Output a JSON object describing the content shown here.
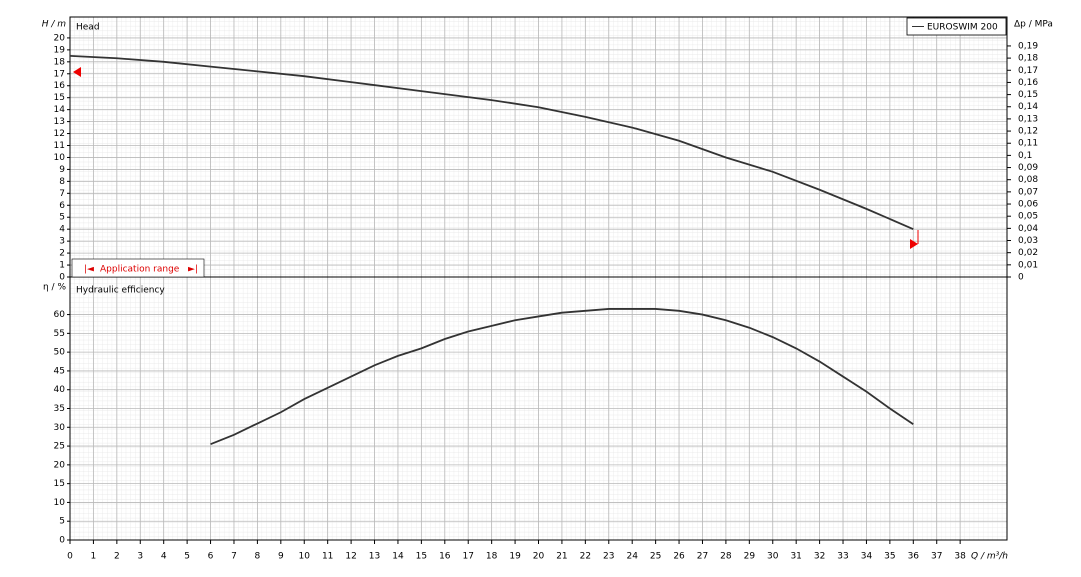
{
  "chart_data": [
    {
      "type": "line",
      "title": "Head",
      "ylabel": "H / m",
      "y2label": "Δp / MPa",
      "ylim": [
        0,
        21.75
      ],
      "yticks": [
        0,
        1,
        2,
        3,
        4,
        5,
        6,
        7,
        8,
        9,
        10,
        11,
        12,
        13,
        14,
        15,
        16,
        17,
        18,
        19,
        20
      ],
      "y2lim": [
        0,
        0.2138
      ],
      "y2ticks": [
        0,
        {
          "value": 0.01,
          "label": "0,01"
        },
        {
          "value": 0.02,
          "label": "0,02"
        },
        {
          "value": 0.03,
          "label": "0,03"
        },
        {
          "value": 0.04,
          "label": "0,04"
        },
        {
          "value": 0.05,
          "label": "0,05"
        },
        {
          "value": 0.06,
          "label": "0,06"
        },
        {
          "value": 0.07,
          "label": "0,07"
        },
        {
          "value": 0.08,
          "label": "0,08"
        },
        {
          "value": 0.09,
          "label": "0,09"
        },
        {
          "value": 0.1,
          "label": "0,1"
        },
        {
          "value": 0.11,
          "label": "0,11"
        },
        {
          "value": 0.12,
          "label": "0,12"
        },
        {
          "value": 0.13,
          "label": "0,13"
        },
        {
          "value": 0.14,
          "label": "0,14"
        },
        {
          "value": 0.15,
          "label": "0,15"
        },
        {
          "value": 0.16,
          "label": "0,16"
        },
        {
          "value": 0.17,
          "label": "0,17"
        },
        {
          "value": 0.18,
          "label": "0,18"
        },
        {
          "value": 0.19,
          "label": "0,19"
        }
      ],
      "annotation": "Application range",
      "legend": "upper right",
      "grid": true,
      "series": [
        {
          "name": "EUROSWIM 200",
          "color": "#333333",
          "x": [
            0,
            2,
            4,
            6,
            8,
            10,
            12,
            14,
            16,
            18,
            20,
            22,
            24,
            26,
            28,
            30,
            32,
            34,
            36
          ],
          "values": [
            18.5,
            18.3,
            18.0,
            17.6,
            17.2,
            16.8,
            16.3,
            15.8,
            15.3,
            14.8,
            14.2,
            13.4,
            12.5,
            11.4,
            10.0,
            8.8,
            7.3,
            5.7,
            4.0
          ]
        }
      ]
    },
    {
      "type": "line",
      "title": "Hydraulic efficiency",
      "ylabel": "η / %",
      "xlabel": "Q / m³/h",
      "xlim": [
        0,
        40
      ],
      "xticks": [
        0,
        1,
        2,
        3,
        4,
        5,
        6,
        7,
        8,
        9,
        10,
        11,
        12,
        13,
        14,
        15,
        16,
        17,
        18,
        19,
        20,
        21,
        22,
        23,
        24,
        25,
        26,
        27,
        28,
        29,
        30,
        31,
        32,
        33,
        34,
        35,
        36,
        37,
        38
      ],
      "ylim": [
        0,
        70
      ],
      "yticks": [
        0,
        5,
        10,
        15,
        20,
        25,
        30,
        35,
        40,
        45,
        50,
        55,
        60
      ],
      "grid": true,
      "series": [
        {
          "color": "#333333",
          "x": [
            6,
            7,
            8,
            9,
            10,
            11,
            12,
            13,
            14,
            15,
            16,
            17,
            18,
            19,
            20,
            21,
            22,
            23,
            24,
            25,
            26,
            27,
            28,
            29,
            30,
            31,
            32,
            33,
            34,
            35,
            36
          ],
          "values": [
            25.5,
            28,
            31,
            34,
            37.5,
            40.5,
            43.5,
            46.5,
            49,
            51,
            53.5,
            55.5,
            57,
            58.5,
            59.5,
            60.5,
            61,
            61.5,
            61.5,
            61.5,
            61,
            60,
            58.5,
            56.5,
            54,
            51,
            47.5,
            43.5,
            39.5,
            35,
            30.8
          ]
        }
      ]
    }
  ]
}
